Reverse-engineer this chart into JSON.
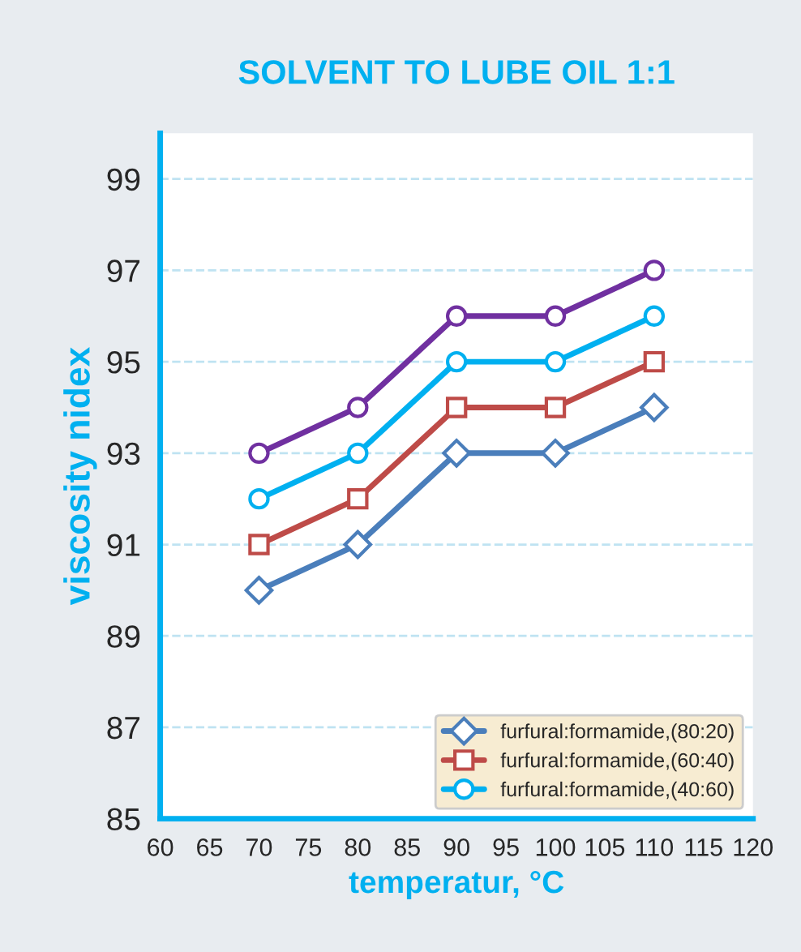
{
  "chart_data": {
    "type": "line",
    "title": "SOLVENT TO LUBE OIL 1:1",
    "xlabel": "temperatur, °C",
    "ylabel": "viscosity nidex",
    "x": [
      70,
      80,
      90,
      100,
      110
    ],
    "series": [
      {
        "name": "furfural:formamide,(80:20)",
        "color": "#4a7ebb",
        "marker": "diamond",
        "values": [
          90,
          91,
          93,
          93,
          94
        ]
      },
      {
        "name": "furfural:formamide,(60:40)",
        "color": "#be4b48",
        "marker": "square",
        "values": [
          91,
          92,
          94,
          94,
          95
        ]
      },
      {
        "name": "furfural:formamide,(40:60)",
        "color": "#00b0f0",
        "marker": "circle",
        "values": [
          92,
          93,
          95,
          95,
          96
        ]
      },
      {
        "color": "#7030a0",
        "marker": "circle",
        "values": [
          93,
          94,
          96,
          96,
          97
        ]
      }
    ],
    "xlim": [
      60,
      120
    ],
    "xticks": [
      60,
      65,
      70,
      75,
      80,
      85,
      90,
      95,
      100,
      105,
      110,
      115,
      120
    ],
    "ylim": [
      85,
      100
    ],
    "yticks": [
      85,
      87,
      89,
      91,
      93,
      95,
      97,
      99
    ],
    "grid": "y",
    "legend": "bottom right",
    "line_style": "solid"
  }
}
